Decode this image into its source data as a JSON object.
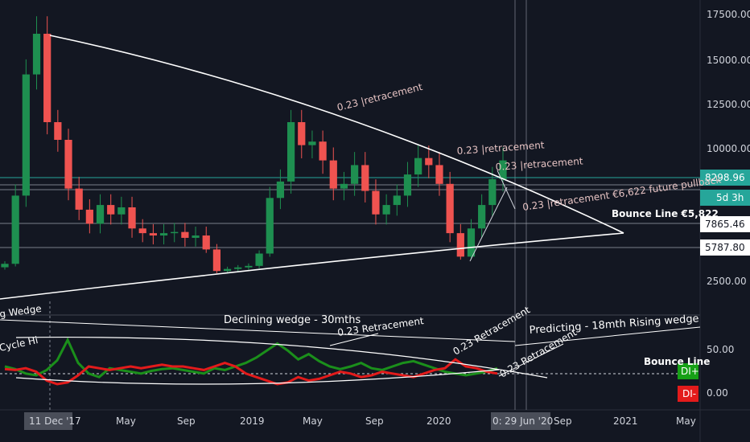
{
  "chart_data": [
    {
      "type": "candlestick",
      "title": "",
      "y_ticks": [
        "17500.00",
        "15000.00",
        "12500.00",
        "10000.00",
        "2500.00"
      ],
      "x_ticks": [
        "11 Dec '17",
        "May",
        "Sep",
        "2019",
        "May",
        "Sep",
        "2020",
        "0:",
        "29 Jun '20",
        "Sep",
        "2021",
        "May"
      ],
      "price_labels": [
        {
          "text": "8298.96",
          "color": "#26a69a"
        },
        {
          "text": "5d 3h",
          "color": "#26a69a"
        },
        {
          "text": "7865.46",
          "color": "#ffffff"
        },
        {
          "text": "5787.80",
          "color": "#ffffff"
        }
      ],
      "annotations": [
        "0.23 |retracement",
        "0.23 |retracement",
        "0.23 |retracement",
        "0.23 |retracement €6,622 future pullback",
        "Bounce Line €5,822"
      ],
      "series": [
        {
          "type": "candles",
          "values": [
            4200,
            8000,
            14200,
            16500,
            11500,
            10500,
            8300,
            7400,
            6800,
            7600,
            7200,
            7500,
            6600,
            6400,
            6300,
            6400,
            6450,
            6200,
            6300,
            5600,
            3500,
            3700,
            3850,
            4000,
            5200,
            7900,
            8600,
            11500,
            10200,
            10400,
            9500,
            8300,
            8500,
            9300,
            8200,
            7200,
            7600,
            8000,
            8900,
            9600,
            9300,
            8500,
            6400,
            4900,
            6600,
            7600,
            8700,
            9500
          ]
        }
      ]
    },
    {
      "type": "line",
      "title": "DMI",
      "y_ticks": [
        "50.00",
        "0.00"
      ],
      "series": [
        {
          "name": "DI+",
          "color": "#1b8f1b",
          "values": [
            30,
            27,
            22,
            20,
            26,
            37,
            60,
            34,
            22,
            18,
            28,
            26,
            24,
            22,
            25,
            27,
            28,
            26,
            24,
            22,
            28,
            26,
            30,
            34,
            40,
            48,
            56,
            48,
            38,
            44,
            36,
            30,
            27,
            30,
            34,
            28,
            26,
            30,
            34,
            36,
            32,
            28,
            24,
            22,
            20,
            22,
            24,
            28
          ]
        },
        {
          "name": "DI-",
          "color": "#e31b1b",
          "values": [
            27,
            26,
            28,
            24,
            14,
            10,
            12,
            20,
            30,
            28,
            26,
            28,
            30,
            28,
            30,
            32,
            30,
            30,
            28,
            26,
            30,
            34,
            30,
            22,
            18,
            14,
            10,
            12,
            18,
            14,
            16,
            20,
            24,
            22,
            18,
            20,
            24,
            22,
            20,
            18,
            22,
            26,
            28,
            38,
            30,
            28,
            24,
            22
          ]
        }
      ],
      "annotations": [
        "Cycle Hi",
        "Declining wedge - 30mths",
        "0.23 Retracement",
        "0.23 Retracement",
        "0.23 Retracement",
        "Predicting -     18mth Rising wedge",
        "Bounce Line",
        "g Wedge"
      ],
      "legend_labels": [
        "DI+",
        "DI-"
      ]
    }
  ],
  "colors": {
    "background": "#131722",
    "up": "#26a69a",
    "up_candle": "#1e8f50",
    "down": "#ef5350",
    "axis_text": "#d1d4dc",
    "grid": "#2a2e39",
    "accent_line": "#26a69a"
  }
}
